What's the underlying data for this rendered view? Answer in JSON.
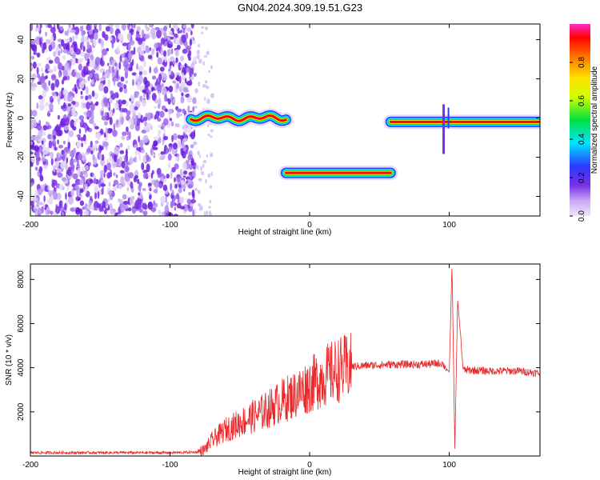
{
  "figure": {
    "title": "GN04.2024.309.19.51.G23"
  },
  "colors": {
    "axis": "#000000",
    "snr_line": "#e8282a",
    "noise_cloud": "#7a2ee6",
    "background": "#ffffff"
  },
  "chart_data": [
    {
      "type": "heatmap",
      "xlabel": "Height of straight line (km)",
      "ylabel": "Frequency (Hz)",
      "xlim": [
        -200,
        165
      ],
      "ylim": [
        -50,
        48
      ],
      "x_ticks": [
        -200,
        -100,
        0,
        100
      ],
      "y_ticks": [
        -40,
        -20,
        0,
        20,
        40
      ],
      "colorbar": {
        "label": "Normalized spectral amplitude",
        "range": [
          0,
          1
        ],
        "ticks": [
          0.0,
          0.2,
          0.4,
          0.6,
          0.8
        ],
        "palette": [
          "#d8c8f0",
          "#7a2ee6",
          "#3a3aff",
          "#00e5ff",
          "#00e040",
          "#d0ff00",
          "#ffe000",
          "#ff7a00",
          "#ff0000",
          "#ff2bd0"
        ]
      },
      "noise_region": {
        "x_range": [
          -200,
          -82
        ],
        "y_range": [
          -50,
          48
        ]
      },
      "segments": [
        {
          "x_start": -85,
          "x_end": -17,
          "frequency": 0,
          "peak_amplitude": 0.9
        },
        {
          "x_start": -17,
          "x_end": 58,
          "frequency": -28,
          "peak_amplitude": 1.0
        },
        {
          "x_start": 58,
          "x_end": 165,
          "frequency": -2,
          "peak_amplitude": 1.0
        }
      ]
    },
    {
      "type": "line",
      "xlabel": "Height of straight line (km)",
      "ylabel": "SNR (10 * v/v)",
      "xlim": [
        -200,
        165
      ],
      "ylim": [
        0,
        8700
      ],
      "x_ticks": [
        -200,
        -100,
        0,
        100
      ],
      "y_ticks": [
        2000,
        4000,
        6000,
        8000
      ],
      "series": [
        {
          "x": [
            -200,
            -180,
            -160,
            -140,
            -120,
            -100,
            -90,
            -80,
            -75,
            -70,
            -60,
            -50,
            -40,
            -30,
            -20,
            -10,
            0,
            10,
            20,
            30,
            40,
            60,
            80,
            95,
            100,
            102,
            104,
            106,
            110,
            130,
            150,
            165
          ],
          "y": [
            150,
            150,
            150,
            150,
            150,
            150,
            160,
            180,
            300,
            700,
            1200,
            1500,
            1800,
            2100,
            2500,
            2800,
            3200,
            3600,
            3900,
            4050,
            4100,
            4150,
            4150,
            4200,
            3800,
            8700,
            300,
            7100,
            3900,
            3850,
            3850,
            3750
          ]
        }
      ]
    }
  ]
}
